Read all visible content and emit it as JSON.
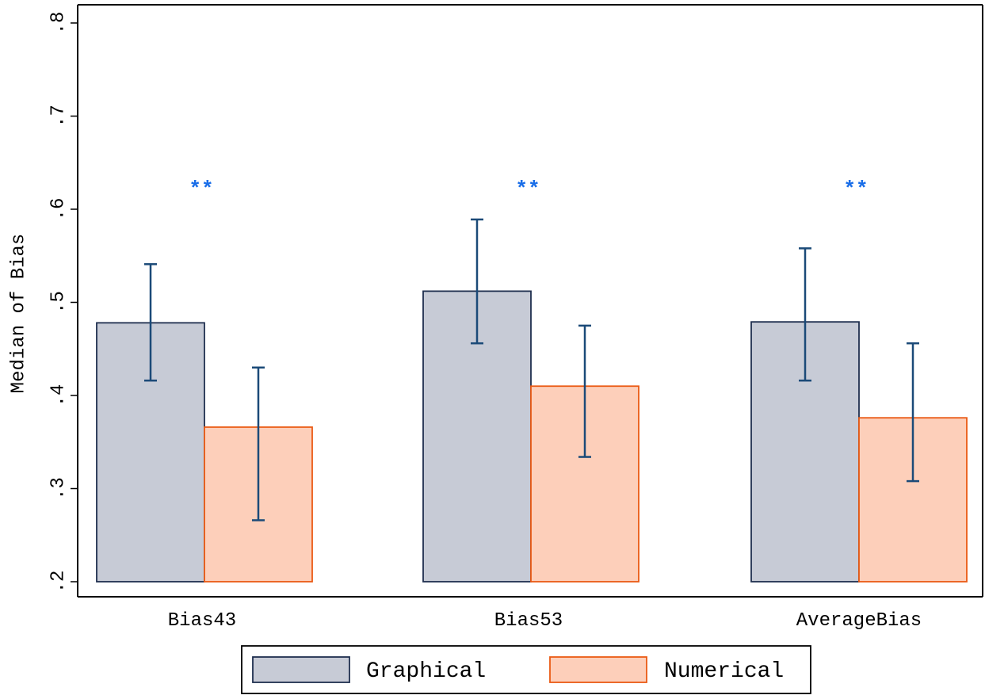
{
  "chart_data": {
    "type": "bar",
    "title": "",
    "xlabel": "",
    "ylabel": "Median of Bias",
    "ylim": [
      0.2,
      0.8
    ],
    "yticks": [
      0.2,
      0.3,
      0.4,
      0.5,
      0.6,
      0.7,
      0.8
    ],
    "ytick_labels": [
      ".2",
      ".3",
      ".4",
      ".5",
      ".6",
      ".7",
      ".8"
    ],
    "categories": [
      "Bias43",
      "Bias53",
      "AverageBias"
    ],
    "series": [
      {
        "name": "Graphical",
        "values": [
          0.478,
          0.512,
          0.479
        ],
        "ci_low": [
          0.416,
          0.456,
          0.416
        ],
        "ci_high": [
          0.541,
          0.589,
          0.558
        ],
        "fill": "#c7cbd6",
        "stroke": "#1f2f4f"
      },
      {
        "name": "Numerical",
        "values": [
          0.366,
          0.41,
          0.376
        ],
        "ci_low": [
          0.266,
          0.334,
          0.308
        ],
        "ci_high": [
          0.43,
          0.475,
          0.456
        ],
        "fill": "#fdcfba",
        "stroke": "#ea5a14"
      }
    ],
    "annotations": [
      "**",
      "**",
      "**"
    ],
    "annotation_color": "#1a6ee8",
    "errorbar_color": "#1b4a78",
    "grid": false,
    "legend": {
      "placement": "bottom-center",
      "items": [
        "Graphical",
        "Numerical"
      ]
    }
  }
}
